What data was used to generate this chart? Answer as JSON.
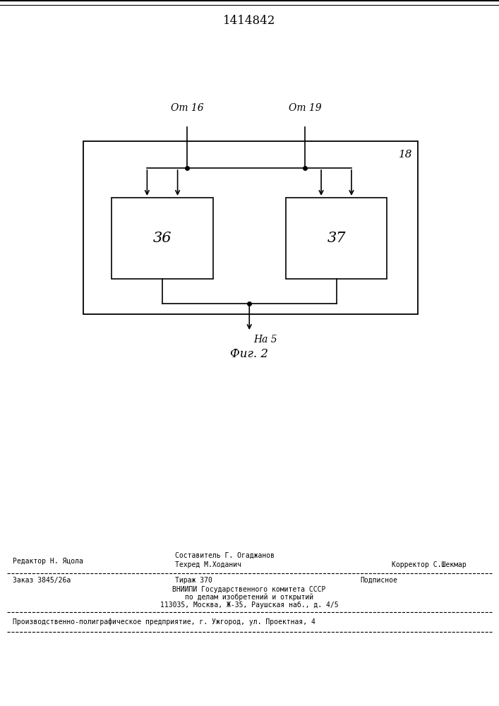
{
  "title": "1414842",
  "fig_label": "Фиг. 2",
  "box18_label": "18",
  "box36_label": "36",
  "box37_label": "37",
  "from16_label": "От 16",
  "from19_label": "От 19",
  "to5_label": "На 5",
  "footer_line1_left": "Редактор Н. Яцола",
  "footer_line1_center": "Составитель Г. Огаджанов",
  "footer_line2_center": "Техред М.Ходанич",
  "footer_line2_right": "Корректор С.Шекмар",
  "footer_order": "Заказ 3845/26а",
  "footer_tirazh": "Тираж 370",
  "footer_podpisnoe": "Подписное",
  "footer_vniip1": "ВНИИПИ Государственного комитета СССР",
  "footer_vniip2": "по делам изобретений и открытий",
  "footer_vniip3": "113035, Москва, Ж-35, Раушская наб., д. 4/5",
  "footer_proizv": "Производственно-полиграфическое предприятие, г. Ужгород, ул. Проектная, 4",
  "bg_color": "#ffffff",
  "text_color": "#000000",
  "line_color": "#000000"
}
